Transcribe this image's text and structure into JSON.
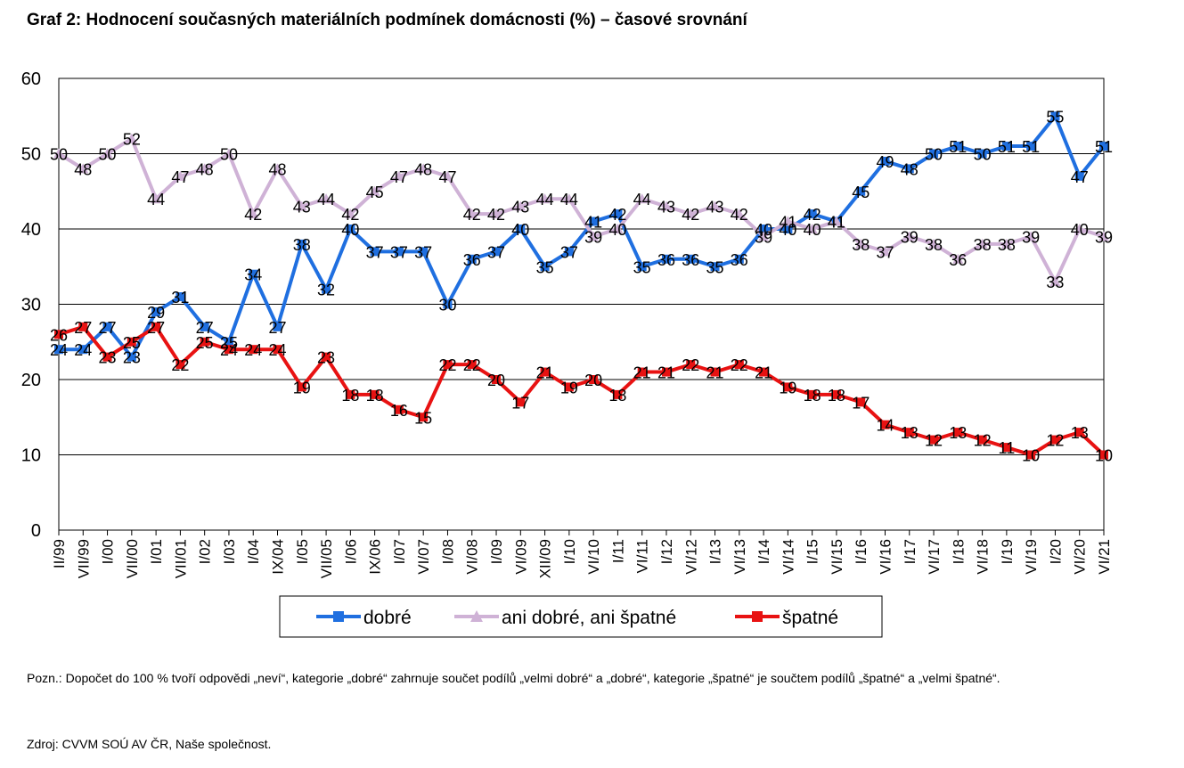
{
  "title": "Graf 2: Hodnocení současných materiálních podmínek domácnosti (%) – časové srovnání",
  "note": "Pozn.: Dopočet do 100 % tvoří odpovědi „neví“, kategorie „dobré“ zahrnuje součet podílů „velmi dobré“ a „dobré“, kategorie „špatné“ je součtem podílů „špatné“ a „velmi špatné“.",
  "source": "Zdroj: CVVM SOÚ AV ČR, Naše společnost.",
  "chart_data": {
    "type": "line",
    "categories": [
      "II/99",
      "VII/99",
      "I/00",
      "VII/00",
      "I/01",
      "VII/01",
      "I/02",
      "I/03",
      "I/04",
      "IX/04",
      "I/05",
      "VII/05",
      "I/06",
      "IX/06",
      "I/07",
      "VI/07",
      "I/08",
      "VI/08",
      "I/09",
      "VI/09",
      "XII/09",
      "I/10",
      "VI/10",
      "I/11",
      "VI/11",
      "I/12",
      "VI/12",
      "I/13",
      "VI/13",
      "I/14",
      "VI/14",
      "I/15",
      "VI/15",
      "I/16",
      "VI/16",
      "I/17",
      "VI/17",
      "I/18",
      "VI/18",
      "I/19",
      "VI/19",
      "I/20",
      "VI/20",
      "VI/21"
    ],
    "series": [
      {
        "name": "dobré",
        "color": "#1f6fe0",
        "marker": "square",
        "values": [
          24,
          24,
          27,
          23,
          29,
          31,
          27,
          25,
          34,
          27,
          38,
          32,
          40,
          37,
          37,
          37,
          30,
          36,
          37,
          40,
          35,
          37,
          41,
          42,
          35,
          36,
          36,
          35,
          36,
          40,
          40,
          42,
          41,
          45,
          49,
          48,
          50,
          51,
          50,
          51,
          51,
          55,
          47,
          51
        ]
      },
      {
        "name": "ani dobré, ani špatné",
        "color": "#cfb2d6",
        "marker": "triangle",
        "values": [
          50,
          48,
          50,
          52,
          44,
          47,
          48,
          50,
          42,
          48,
          43,
          44,
          42,
          45,
          47,
          48,
          47,
          42,
          42,
          43,
          44,
          44,
          39,
          40,
          44,
          43,
          42,
          43,
          42,
          39,
          41,
          40,
          41,
          38,
          37,
          39,
          38,
          36,
          38,
          38,
          39,
          33,
          40,
          39
        ]
      },
      {
        "name": "špatné",
        "color": "#e81212",
        "marker": "square",
        "values": [
          26,
          27,
          23,
          25,
          27,
          22,
          25,
          24,
          24,
          24,
          19,
          23,
          18,
          18,
          16,
          15,
          22,
          22,
          20,
          17,
          21,
          19,
          20,
          18,
          21,
          21,
          22,
          21,
          22,
          21,
          19,
          18,
          18,
          17,
          14,
          13,
          12,
          13,
          12,
          11,
          10,
          12,
          13,
          10
        ]
      }
    ],
    "y_ticks": [
      "0",
      "10",
      "20",
      "30",
      "40",
      "50",
      "60"
    ],
    "ylim": [
      0,
      60
    ],
    "grid": true,
    "legend_position": "bottom"
  }
}
